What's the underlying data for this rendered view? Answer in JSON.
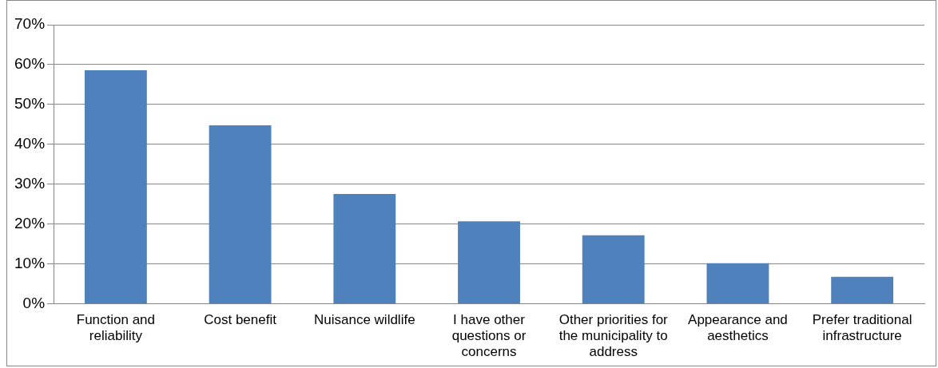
{
  "chart_data": {
    "type": "bar",
    "categories": [
      "Function and reliability",
      "Cost benefit",
      "Nuisance wildlife",
      "I have other questions or concerns",
      "Other priorities for the municipality to address",
      "Appearance and aesthetics",
      "Prefer traditional infrastructure"
    ],
    "values": [
      58.6,
      44.8,
      27.6,
      20.7,
      17.2,
      10.2,
      6.8
    ],
    "color": "#4f81bd",
    "ylim": [
      0,
      70
    ],
    "yticks": [
      {
        "value": 0,
        "label": "0%"
      },
      {
        "value": 10,
        "label": "10%"
      },
      {
        "value": 20,
        "label": "20%"
      },
      {
        "value": 30,
        "label": "30%"
      },
      {
        "value": 40,
        "label": "40%"
      },
      {
        "value": 50,
        "label": "50%"
      },
      {
        "value": 60,
        "label": "60%"
      },
      {
        "value": 70,
        "label": "70%"
      }
    ],
    "grid": "y",
    "legend": false
  }
}
